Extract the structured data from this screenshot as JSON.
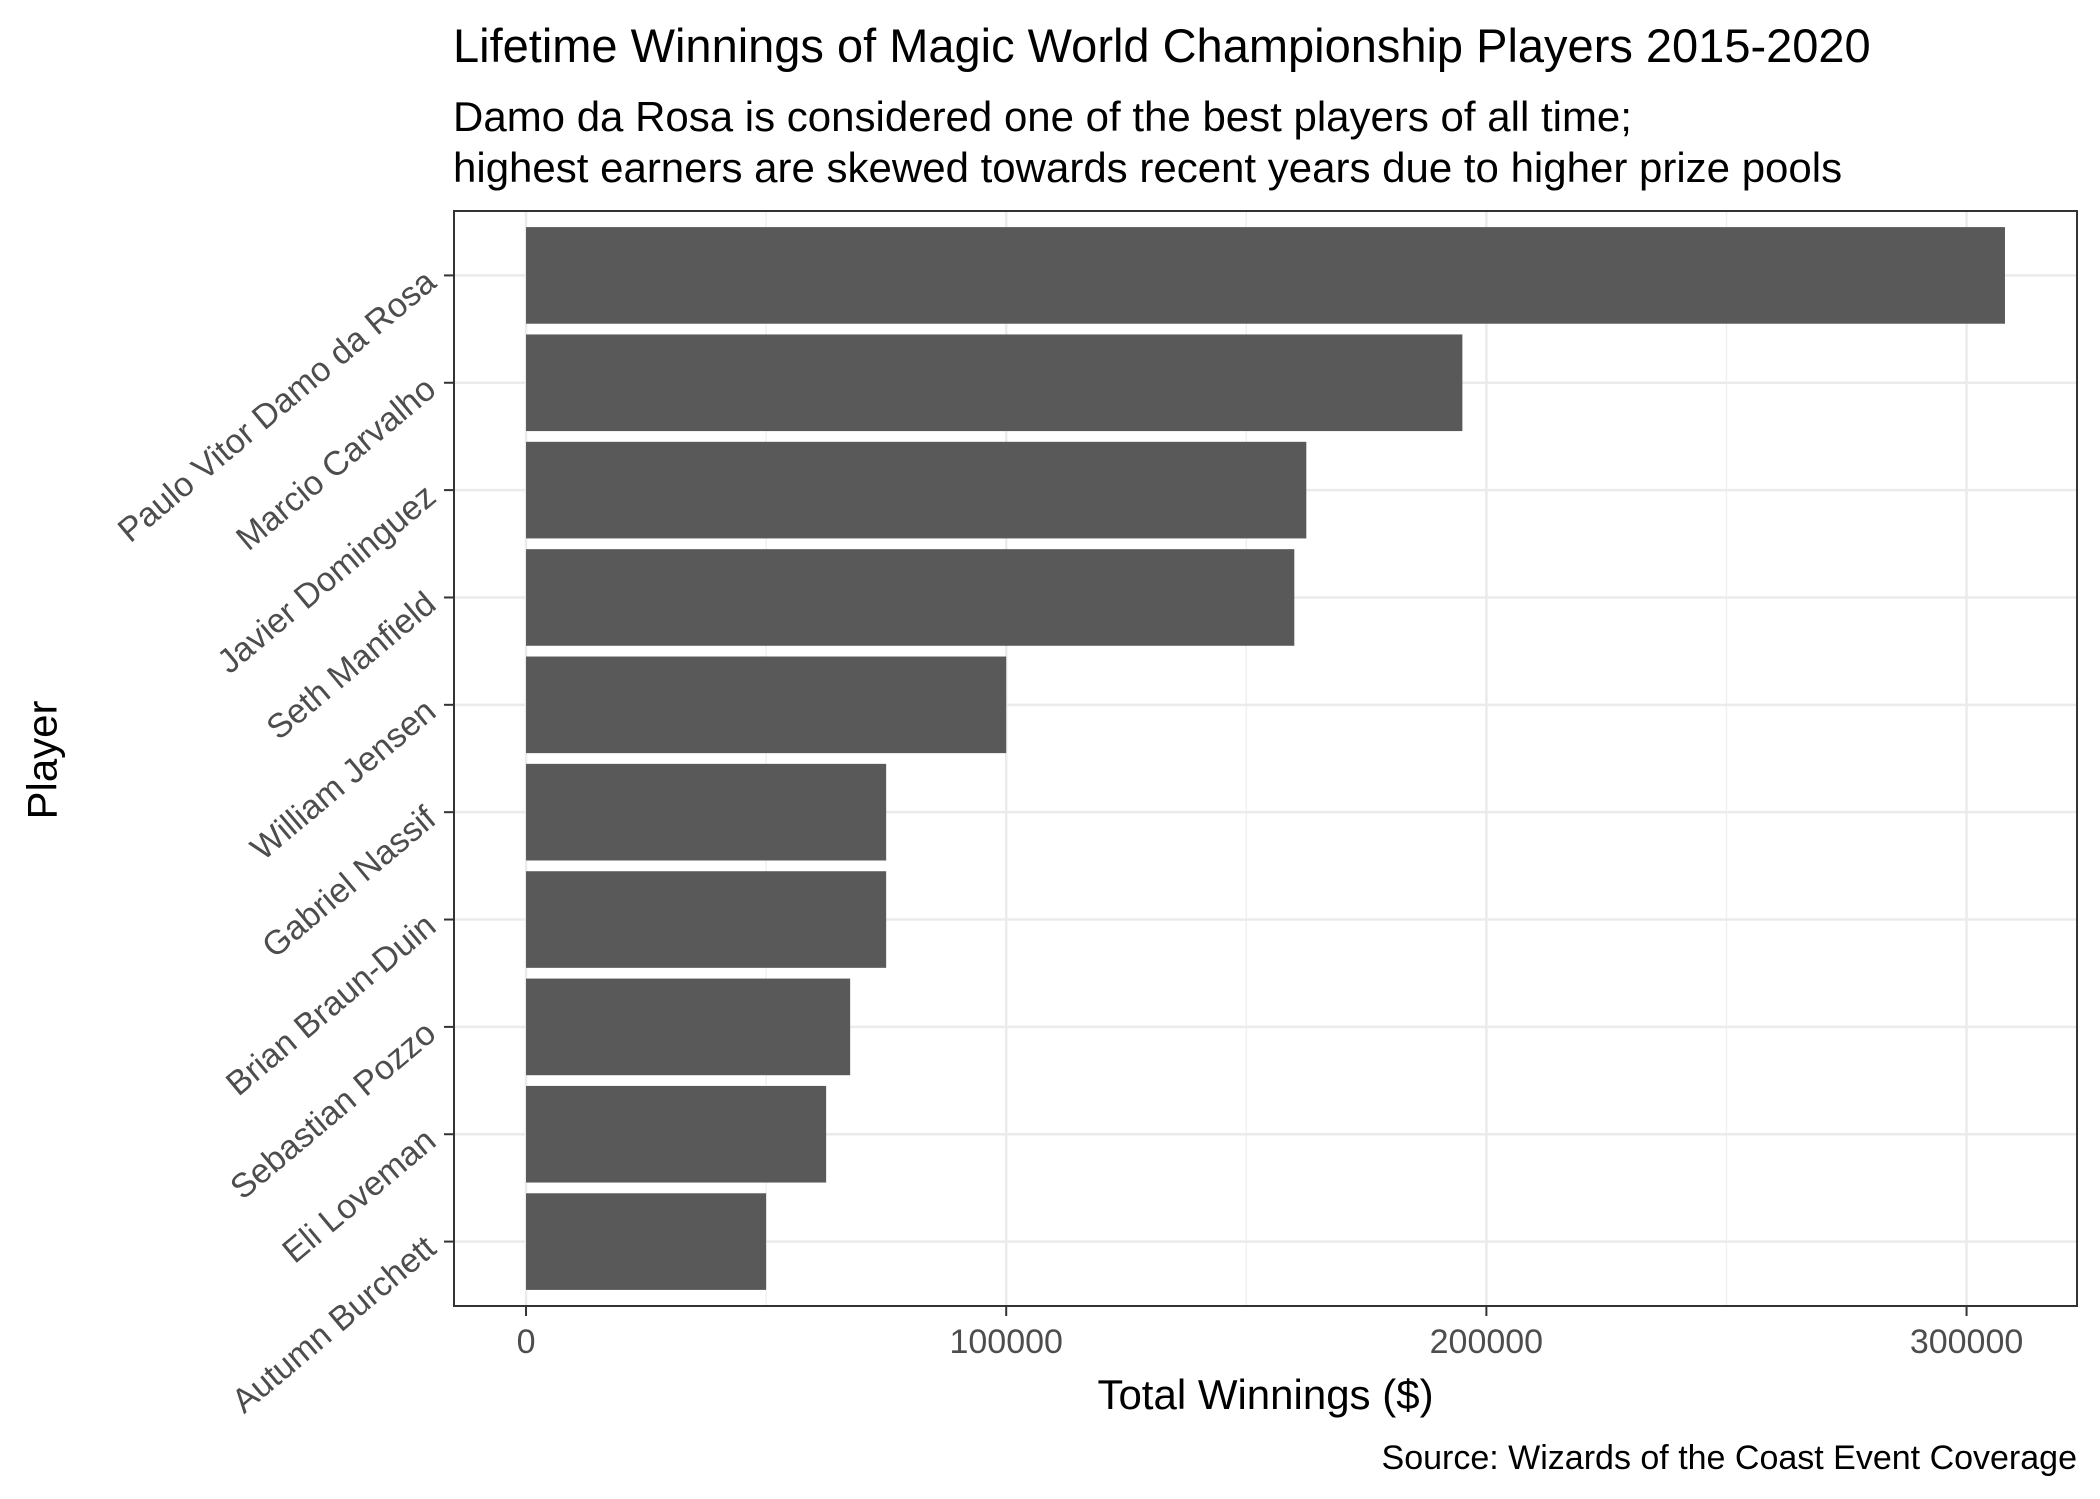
{
  "chart_data": {
    "type": "bar",
    "orientation": "horizontal",
    "title": "Lifetime Winnings of Magic World Championship Players 2015-2020",
    "subtitle": [
      "Damo da Rosa is considered one of the best players of all time;",
      "highest earners are skewed towards recent years due to higher prize pools"
    ],
    "xlabel": "Total Winnings ($)",
    "ylabel": "Player",
    "caption": "Source: Wizards of the Coast Event Coverage",
    "categories": [
      "Paulo Vitor Damo da Rosa",
      "Marcio Carvalho",
      "Javier Dominguez",
      "Seth Manfield",
      "William Jensen",
      "Gabriel Nassif",
      "Brian Braun-Duin",
      "Sebastian Pozzo",
      "Eli Loveman",
      "Autumn Burchett"
    ],
    "values": [
      308000,
      195000,
      162500,
      160000,
      100000,
      75000,
      75000,
      67500,
      62500,
      50000
    ],
    "xlim": [
      -15000,
      323000
    ],
    "xticks": [
      0,
      100000,
      200000,
      300000
    ],
    "xtick_labels": [
      "0",
      "100000",
      "200000",
      "300000"
    ],
    "grid": true,
    "bar_color": "#595959",
    "theme": "bw"
  }
}
